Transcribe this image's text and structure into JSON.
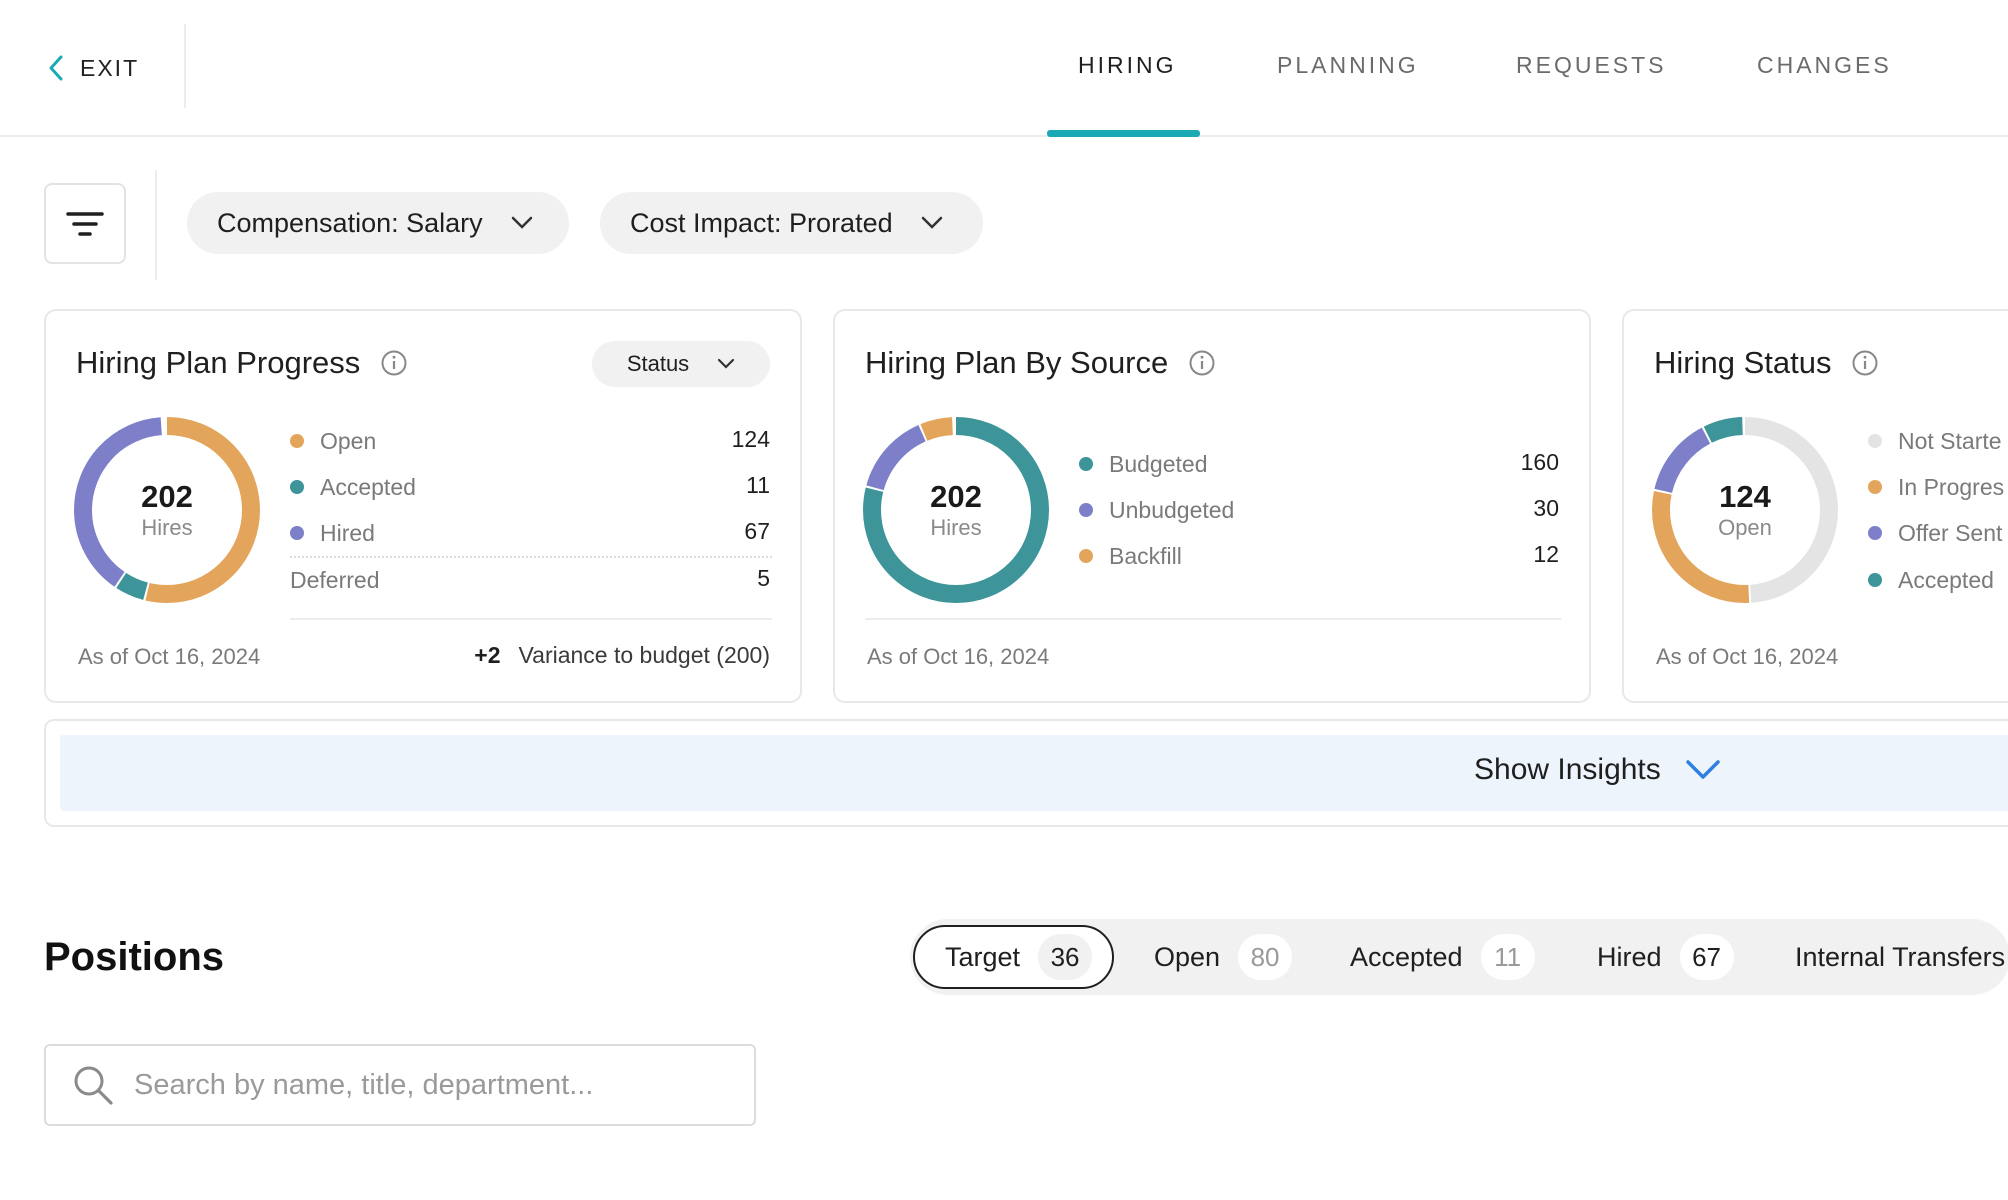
{
  "nav": {
    "exit_label": "EXIT",
    "tabs": [
      {
        "label": "HIRING",
        "active": true
      },
      {
        "label": "PLANNING",
        "active": false
      },
      {
        "label": "REQUESTS",
        "active": false
      },
      {
        "label": "CHANGES",
        "active": false
      }
    ]
  },
  "filters": {
    "compensation": "Compensation: Salary",
    "cost_impact": "Cost Impact: Prorated"
  },
  "colors": {
    "accent": "#1ba9b5",
    "orange": "#e3a55c",
    "teal": "#3d9499",
    "purple": "#7d7fc9",
    "grey": "#e4e4e4"
  },
  "cards": {
    "progress": {
      "title": "Hiring Plan Progress",
      "status_label": "Status",
      "total": "202",
      "total_sub": "Hires",
      "legend": [
        {
          "label": "Open",
          "value": "124",
          "color": "orange"
        },
        {
          "label": "Accepted",
          "value": "11",
          "color": "teal"
        },
        {
          "label": "Hired",
          "value": "67",
          "color": "purple"
        }
      ],
      "deferred_label": "Deferred",
      "deferred_value": "5",
      "as_of": "As of Oct 16, 2024",
      "variance_delta": "+2",
      "variance_label": "Variance to budget (200)"
    },
    "source": {
      "title": "Hiring Plan By Source",
      "total": "202",
      "total_sub": "Hires",
      "legend": [
        {
          "label": "Budgeted",
          "value": "160",
          "color": "teal"
        },
        {
          "label": "Unbudgeted",
          "value": "30",
          "color": "purple"
        },
        {
          "label": "Backfill",
          "value": "12",
          "color": "orange"
        }
      ],
      "as_of": "As of Oct 16, 2024"
    },
    "status": {
      "title": "Hiring Status",
      "total": "124",
      "total_sub": "Open",
      "legend": [
        {
          "label": "Not Starte",
          "color": "grey"
        },
        {
          "label": "In Progres",
          "color": "orange"
        },
        {
          "label": "Offer Sent",
          "color": "purple"
        },
        {
          "label": "Accepted",
          "color": "teal"
        }
      ],
      "as_of": "As of Oct 16, 2024"
    }
  },
  "insights": {
    "label": "Show Insights"
  },
  "positions": {
    "title": "Positions",
    "segments": [
      {
        "label": "Target",
        "count": "36"
      },
      {
        "label": "Open",
        "count": "80"
      },
      {
        "label": "Accepted",
        "count": "11"
      },
      {
        "label": "Hired",
        "count": "67"
      },
      {
        "label": "Internal Transfers",
        "count": ""
      }
    ],
    "search_placeholder": "Search by name, title, department..."
  }
}
